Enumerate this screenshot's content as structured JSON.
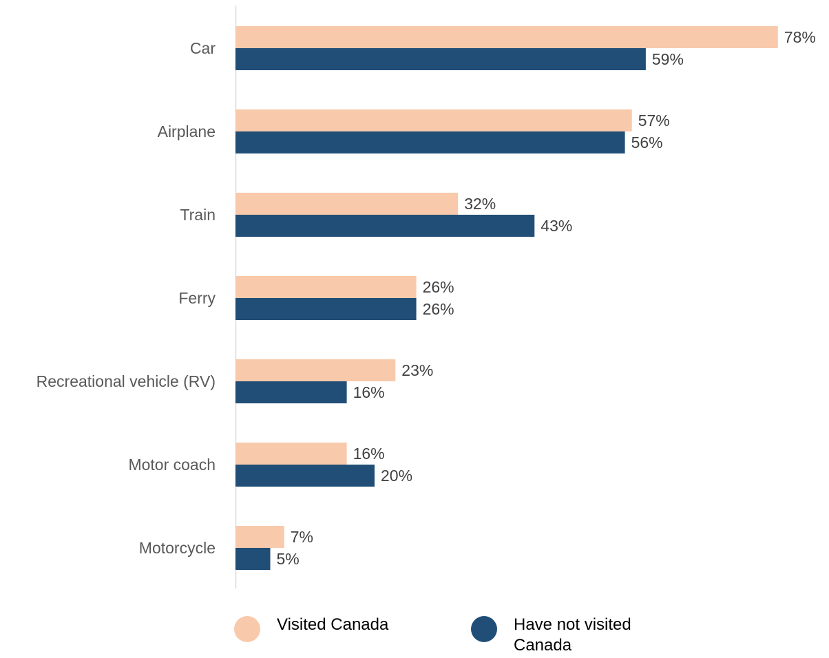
{
  "chart_data": {
    "type": "bar",
    "orientation": "horizontal",
    "categories": [
      "Car",
      "Airplane",
      "Train",
      "Ferry",
      "Recreational vehicle (RV)",
      "Motor coach",
      "Motorcycle"
    ],
    "series": [
      {
        "name": "Visited Canada",
        "color": "#F8C9AA",
        "values": [
          78,
          57,
          32,
          26,
          23,
          16,
          7
        ]
      },
      {
        "name": "Have not visited Canada",
        "color": "#204E76",
        "values": [
          59,
          56,
          43,
          26,
          16,
          20,
          5
        ]
      }
    ],
    "value_format": "{v}%",
    "xlim": [
      0,
      80
    ],
    "grid": false,
    "legend_position": "bottom"
  },
  "legend": {
    "items": [
      {
        "label": "Visited Canada",
        "color": "#F8C9AA"
      },
      {
        "label": "Have not visited Canada",
        "color": "#204E76"
      }
    ]
  }
}
